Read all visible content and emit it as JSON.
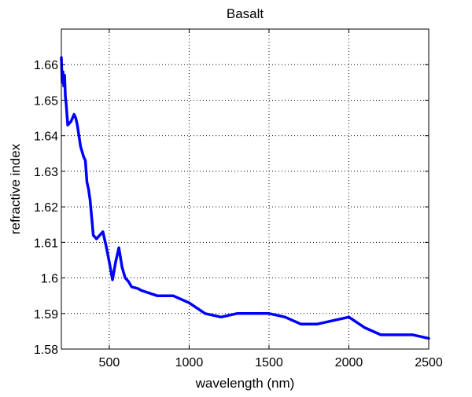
{
  "chart_data": {
    "type": "line",
    "title": "Basalt",
    "xlabel": "wavelength (nm)",
    "ylabel": "refractive index",
    "xlim": [
      200,
      2500
    ],
    "ylim": [
      1.58,
      1.67
    ],
    "grid": true,
    "x_ticks": [
      500,
      1000,
      1500,
      2000,
      2500
    ],
    "x_tick_labels": [
      "500",
      "1000",
      "1500",
      "2000",
      "2500"
    ],
    "y_ticks": [
      1.58,
      1.59,
      1.6,
      1.61,
      1.62,
      1.63,
      1.64,
      1.65,
      1.66
    ],
    "y_tick_labels": [
      "1.58",
      "1.59",
      "1.6",
      "1.61",
      "1.62",
      "1.63",
      "1.64",
      "1.65",
      "1.66"
    ],
    "series": [
      {
        "color": "#0000ff",
        "x": [
          200,
          205,
          210,
          215,
          220,
          225,
          230,
          240,
          250,
          260,
          270,
          280,
          290,
          300,
          320,
          340,
          350,
          360,
          370,
          380,
          400,
          420,
          440,
          460,
          480,
          500,
          520,
          540,
          560,
          580,
          600,
          620,
          640,
          680,
          700,
          800,
          900,
          1000,
          1100,
          1200,
          1300,
          1400,
          1500,
          1600,
          1700,
          1800,
          1900,
          2000,
          2100,
          2200,
          2300,
          2400,
          2500
        ],
        "y": [
          1.662,
          1.655,
          1.658,
          1.654,
          1.657,
          1.651,
          1.649,
          1.643,
          1.6435,
          1.644,
          1.645,
          1.646,
          1.645,
          1.643,
          1.637,
          1.634,
          1.633,
          1.627,
          1.625,
          1.622,
          1.612,
          1.611,
          1.612,
          1.613,
          1.609,
          1.6045,
          1.5995,
          1.6045,
          1.6085,
          1.603,
          1.6,
          1.599,
          1.5975,
          1.597,
          1.5965,
          1.595,
          1.595,
          1.593,
          1.59,
          1.589,
          1.59,
          1.59,
          1.59,
          1.589,
          1.587,
          1.587,
          1.588,
          1.589,
          1.586,
          1.584,
          1.584,
          1.584,
          1.583
        ]
      }
    ]
  }
}
